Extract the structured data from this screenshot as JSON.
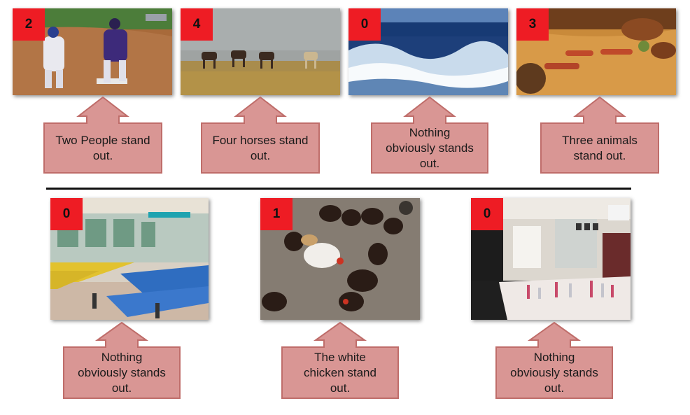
{
  "colors": {
    "badge": "#ee1c24",
    "callout_fill": "#d99694",
    "callout_stroke": "#bf6d6a",
    "divider": "#111111"
  },
  "top_row": [
    {
      "count": "2",
      "caption": "Two People stand out.",
      "scene": "baseball players"
    },
    {
      "count": "4",
      "caption": "Four horses stand out.",
      "scene": "horses on plain"
    },
    {
      "count": "0",
      "caption": "Nothing obviously stands out.",
      "scene": "ocean waves"
    },
    {
      "count": "3",
      "caption": "Three animals stand out.",
      "scene": "lizards on sand"
    }
  ],
  "bottom_row": [
    {
      "count": "0",
      "caption": "Nothing obviously stands out.",
      "scene": "cafeteria tables"
    },
    {
      "count": "1",
      "caption": "The white chicken stand out.",
      "scene": "chickens"
    },
    {
      "count": "0",
      "caption": "Nothing obviously stands out.",
      "scene": "laboratory"
    }
  ]
}
